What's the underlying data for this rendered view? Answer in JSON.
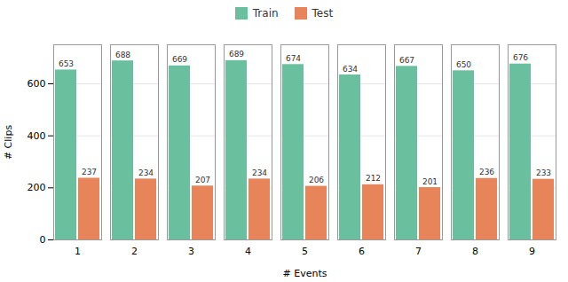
{
  "chart_data": {
    "type": "bar",
    "categories": [
      "1",
      "2",
      "3",
      "4",
      "5",
      "6",
      "7",
      "8",
      "9"
    ],
    "series": [
      {
        "name": "Train",
        "color": "#6abf9e",
        "values": [
          653,
          688,
          669,
          689,
          674,
          634,
          667,
          650,
          676
        ]
      },
      {
        "name": "Test",
        "color": "#e8845a",
        "values": [
          237,
          234,
          207,
          234,
          206,
          212,
          201,
          236,
          233
        ]
      }
    ],
    "xlabel": "# Events",
    "ylabel": "# Clips",
    "ylim": [
      0,
      750
    ],
    "yticks": [
      0,
      200,
      400,
      600
    ],
    "grid": true,
    "legend": "top",
    "data_labels": true
  }
}
